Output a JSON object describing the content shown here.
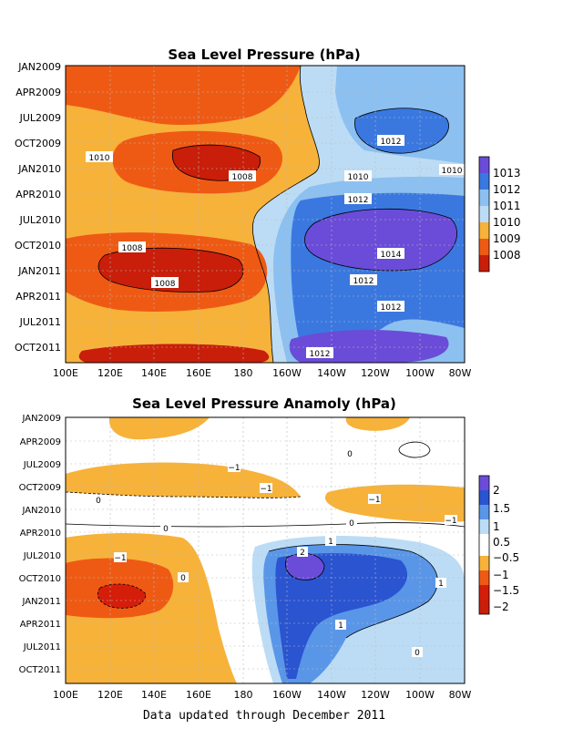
{
  "footer": "Data updated through December 2011",
  "colors": {
    "p1008": "#c81e0a",
    "p1009": "#ee5a14",
    "p1010": "#f7b23a",
    "p1011": "#bcdcf5",
    "p1012": "#8cc0f0",
    "p1012b": "#3a78e0",
    "p1013": "#2a54d0",
    "p1014": "#6a4cd8",
    "a_n2": "#d41e0a",
    "a_n15": "#ee5a14",
    "a_n1": "#f7b23a",
    "a_n05": "#ffffff",
    "a_p05": "#ffffff",
    "a_p1": "#bcdcf5",
    "a_p15": "#5a96e8",
    "a_p2": "#2a54d0",
    "a_p25": "#6a4cd8"
  },
  "chart_data": [
    {
      "type": "heatmap",
      "title": "Sea Level Pressure (hPa)",
      "x_ticks": [
        "100E",
        "120E",
        "140E",
        "160E",
        "180",
        "160W",
        "140W",
        "120W",
        "100W",
        "80W"
      ],
      "y_ticks": [
        "JAN2009",
        "APR2009",
        "JUL2009",
        "OCT2009",
        "JAN2010",
        "APR2010",
        "JUL2010",
        "OCT2010",
        "JAN2011",
        "APR2011",
        "JUL2011",
        "OCT2011"
      ],
      "colorbar": {
        "labels": [
          "1013",
          "1012",
          "1011",
          "1010",
          "1009",
          "1008"
        ],
        "colors": [
          "#6a4cd8",
          "#3a78e0",
          "#8cc0f0",
          "#bcdcf5",
          "#f7b23a",
          "#ee5a14",
          "#c81e0a"
        ]
      },
      "contour_labels": [
        "1010",
        "1012",
        "1008",
        "1010",
        "1010",
        "1012",
        "1014",
        "1008",
        "1012",
        "1008",
        "1012",
        "1012"
      ]
    },
    {
      "type": "heatmap",
      "title": "Sea Level Pressure Anamoly (hPa)",
      "x_ticks": [
        "100E",
        "120E",
        "140E",
        "160E",
        "180",
        "160W",
        "140W",
        "120W",
        "100W",
        "80W"
      ],
      "y_ticks": [
        "JAN2009",
        "APR2009",
        "JUL2009",
        "OCT2009",
        "JAN2010",
        "APR2010",
        "JUL2010",
        "OCT2010",
        "JAN2011",
        "APR2011",
        "JUL2011",
        "OCT2011"
      ],
      "colorbar": {
        "labels": [
          "2",
          "1.5",
          "1",
          "0.5",
          "−0.5",
          "−1",
          "−1.5",
          "−2"
        ],
        "colors": [
          "#6a4cd8",
          "#2a54d0",
          "#5a96e8",
          "#bcdcf5",
          "#ffffff",
          "#f7b23a",
          "#ee5a14",
          "#d41e0a",
          "#c81e0a"
        ]
      },
      "contour_labels": [
        "0",
        "−1",
        "−1",
        "−1",
        "0",
        "−1",
        "0",
        "0",
        "−1",
        "1",
        "2",
        "0",
        "1",
        "1",
        "0"
      ]
    }
  ]
}
